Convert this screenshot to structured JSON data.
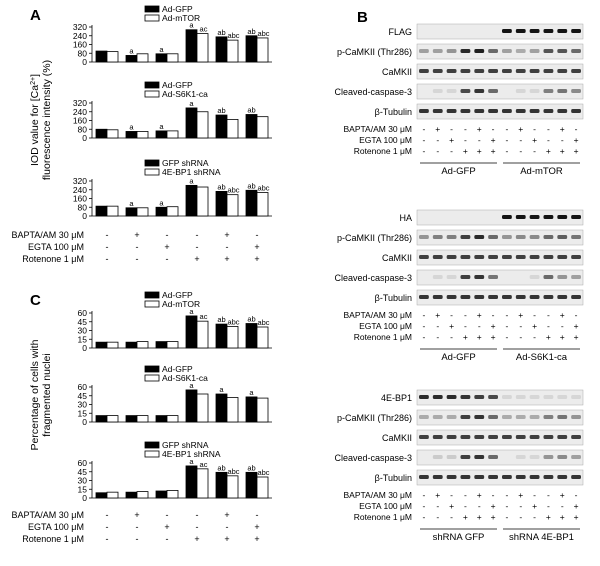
{
  "panel_letters": [
    "A",
    "B",
    "C"
  ],
  "panel_a": {
    "ylabel_line1": "IOD value for [Ca",
    "ylabel_sup": "2+",
    "ylabel_end": "]",
    "ylabel_line2": "fluorescence intensity (%)"
  },
  "panel_c": {
    "ylabel_line1": "Percentage of cells with",
    "ylabel_line2": "fragmented nuclei"
  },
  "treatments": {
    "labels": [
      "BAPTA/AM 30 μM",
      "EGTA 100 μM",
      "Rotenone 1 μM"
    ],
    "signs": [
      [
        "-",
        "+",
        "-",
        "-",
        "+",
        "-"
      ],
      [
        "-",
        "-",
        "+",
        "-",
        "-",
        "+"
      ],
      [
        "-",
        "-",
        "-",
        "+",
        "+",
        "+"
      ]
    ]
  },
  "colors": {
    "filled": "#000000",
    "open": "#ffffff",
    "band": "#2a2a2a",
    "blot_bg": "#ececec"
  },
  "chart_data": [
    {
      "type": "bar",
      "panel": "A",
      "legend": [
        "Ad-GFP",
        "Ad-mTOR"
      ],
      "yticks": [
        0,
        80,
        160,
        240,
        320
      ],
      "ylim": [
        0,
        320
      ],
      "categories": [
        "1",
        "2",
        "3",
        "4",
        "5",
        "6"
      ],
      "series": [
        {
          "name": "Ad-GFP",
          "values": [
            100,
            60,
            75,
            295,
            230,
            240
          ]
        },
        {
          "name": "Ad-mTOR",
          "values": [
            95,
            75,
            75,
            260,
            200,
            220
          ]
        }
      ],
      "annotations": [
        "",
        "a",
        "a",
        "a",
        "ab",
        "ab"
      ],
      "annotations2": [
        "",
        "",
        "",
        "ac",
        "abc",
        "abc"
      ]
    },
    {
      "type": "bar",
      "panel": "A",
      "legend": [
        "Ad-GFP",
        "Ad-S6K1-ca"
      ],
      "yticks": [
        0,
        80,
        160,
        240,
        320
      ],
      "ylim": [
        0,
        320
      ],
      "categories": [
        "1",
        "2",
        "3",
        "4",
        "5",
        "6"
      ],
      "series": [
        {
          "name": "Ad-GFP",
          "values": [
            80,
            60,
            65,
            275,
            210,
            215
          ]
        },
        {
          "name": "Ad-S6K1-ca",
          "values": [
            75,
            60,
            65,
            240,
            170,
            195
          ]
        }
      ],
      "annotations": [
        "",
        "a",
        "a",
        "a",
        "ab",
        "ab"
      ],
      "annotations2": [
        "",
        "",
        "",
        "",
        "",
        ""
      ]
    },
    {
      "type": "bar",
      "panel": "A",
      "legend": [
        "GFP shRNA",
        "4E-BP1 shRNA"
      ],
      "yticks": [
        0,
        80,
        160,
        240,
        320
      ],
      "ylim": [
        0,
        320
      ],
      "categories": [
        "1",
        "2",
        "3",
        "4",
        "5",
        "6"
      ],
      "series": [
        {
          "name": "GFP shRNA",
          "values": [
            90,
            75,
            80,
            280,
            225,
            235
          ]
        },
        {
          "name": "4E-BP1 shRNA",
          "values": [
            90,
            75,
            85,
            265,
            195,
            215
          ]
        }
      ],
      "annotations": [
        "",
        "a",
        "a",
        "a",
        "ab",
        "ab"
      ],
      "annotations2": [
        "",
        "",
        "",
        "",
        "abc",
        "abc"
      ]
    },
    {
      "type": "bar",
      "panel": "C",
      "legend": [
        "Ad-GFP",
        "Ad-mTOR"
      ],
      "yticks": [
        0,
        15,
        30,
        45,
        60
      ],
      "ylim": [
        0,
        60
      ],
      "categories": [
        "1",
        "2",
        "3",
        "4",
        "5",
        "6"
      ],
      "series": [
        {
          "name": "Ad-GFP",
          "values": [
            10,
            10,
            11,
            55,
            41,
            42
          ]
        },
        {
          "name": "Ad-mTOR",
          "values": [
            10,
            11,
            11,
            46,
            37,
            36
          ]
        }
      ],
      "annotations": [
        "",
        "",
        "",
        "a",
        "ab",
        "ab"
      ],
      "annotations2": [
        "",
        "",
        "",
        "ac",
        "abc",
        "abc"
      ]
    },
    {
      "type": "bar",
      "panel": "C",
      "legend": [
        "Ad-GFP",
        "Ad-S6K1-ca"
      ],
      "yticks": [
        0,
        15,
        30,
        45,
        60
      ],
      "ylim": [
        0,
        60
      ],
      "categories": [
        "1",
        "2",
        "3",
        "4",
        "5",
        "6"
      ],
      "series": [
        {
          "name": "Ad-GFP",
          "values": [
            11,
            11,
            11,
            55,
            48,
            43
          ]
        },
        {
          "name": "Ad-S6K1-ca",
          "values": [
            11,
            11,
            11,
            48,
            42,
            41
          ]
        }
      ],
      "annotations": [
        "",
        "",
        "",
        "a",
        "a",
        "a"
      ],
      "annotations2": [
        "",
        "",
        "",
        "",
        "",
        ""
      ]
    },
    {
      "type": "bar",
      "panel": "C",
      "legend": [
        "GFP shRNA",
        "4E-BP1 shRNA"
      ],
      "yticks": [
        0,
        15,
        30,
        45,
        60
      ],
      "ylim": [
        0,
        60
      ],
      "categories": [
        "1",
        "2",
        "3",
        "4",
        "5",
        "6"
      ],
      "series": [
        {
          "name": "GFP shRNA",
          "values": [
            9,
            10,
            12,
            55,
            44,
            44
          ]
        },
        {
          "name": "4E-BP1 shRNA",
          "values": [
            10,
            11,
            13,
            50,
            38,
            36
          ]
        }
      ],
      "annotations": [
        "",
        "",
        "",
        "a",
        "ab",
        "ab"
      ],
      "annotations2": [
        "",
        "",
        "",
        "ac",
        "abc",
        "abc"
      ]
    }
  ],
  "blots": [
    {
      "rows": [
        "FLAG",
        "p-CaMKII (Thr286)",
        "CaMKII",
        "Cleaved-caspase-3",
        "β-Tubulin"
      ],
      "intensity": [
        [
          0,
          0,
          0,
          0,
          0,
          0,
          1,
          1,
          1,
          1,
          1,
          1
        ],
        [
          0.35,
          0.35,
          0.4,
          0.9,
          0.95,
          0.6,
          0.35,
          0.3,
          0.35,
          0.7,
          0.7,
          0.6
        ],
        [
          0.8,
          0.8,
          0.8,
          0.8,
          0.8,
          0.8,
          0.8,
          0.8,
          0.8,
          0.8,
          0.8,
          0.8
        ],
        [
          0,
          0.1,
          0.1,
          0.75,
          0.85,
          0.6,
          0,
          0.1,
          0.1,
          0.5,
          0.55,
          0.45
        ],
        [
          0.85,
          0.85,
          0.85,
          0.85,
          0.85,
          0.85,
          0.85,
          0.85,
          0.85,
          0.85,
          0.85,
          0.85
        ]
      ],
      "groups": [
        "Ad-GFP",
        "Ad-mTOR"
      ]
    },
    {
      "rows": [
        "HA",
        "p-CaMKII (Thr286)",
        "CaMKII",
        "Cleaved-caspase-3",
        "β-Tubulin"
      ],
      "intensity": [
        [
          0,
          0,
          0,
          0,
          0,
          0,
          1,
          1,
          1,
          1,
          1,
          1
        ],
        [
          0.4,
          0.5,
          0.5,
          0.8,
          0.9,
          0.6,
          0.4,
          0.45,
          0.45,
          0.6,
          0.65,
          0.55
        ],
        [
          0.8,
          0.8,
          0.8,
          0.8,
          0.8,
          0.8,
          0.8,
          0.8,
          0.8,
          0.8,
          0.8,
          0.8
        ],
        [
          0,
          0.1,
          0.1,
          0.8,
          0.85,
          0.55,
          0,
          0,
          0.1,
          0.6,
          0.4,
          0.35
        ],
        [
          0.85,
          0.85,
          0.85,
          0.85,
          0.85,
          0.85,
          0.85,
          0.85,
          0.85,
          0.85,
          0.85,
          0.85
        ]
      ],
      "groups": [
        "Ad-GFP",
        "Ad-S6K1-ca"
      ]
    },
    {
      "rows": [
        "4E-BP1",
        "p-CaMKII (Thr286)",
        "CaMKII",
        "Cleaved-caspase-3",
        "β-Tubulin"
      ],
      "intensity": [
        [
          0.9,
          0.9,
          0.9,
          0.85,
          0.8,
          0.75,
          0.1,
          0.1,
          0.1,
          0.1,
          0.1,
          0.1
        ],
        [
          0.3,
          0.3,
          0.3,
          0.8,
          0.85,
          0.6,
          0.3,
          0.3,
          0.3,
          0.5,
          0.55,
          0.4
        ],
        [
          0.8,
          0.8,
          0.8,
          0.8,
          0.8,
          0.8,
          0.8,
          0.8,
          0.8,
          0.8,
          0.8,
          0.8
        ],
        [
          0,
          0.15,
          0.15,
          0.8,
          0.85,
          0.6,
          0,
          0.1,
          0.1,
          0.4,
          0.45,
          0.35
        ],
        [
          0.85,
          0.85,
          0.85,
          0.85,
          0.85,
          0.85,
          0.85,
          0.85,
          0.85,
          0.85,
          0.85,
          0.85
        ]
      ],
      "groups": [
        "shRNA GFP",
        "shRNA 4E-BP1"
      ]
    }
  ]
}
